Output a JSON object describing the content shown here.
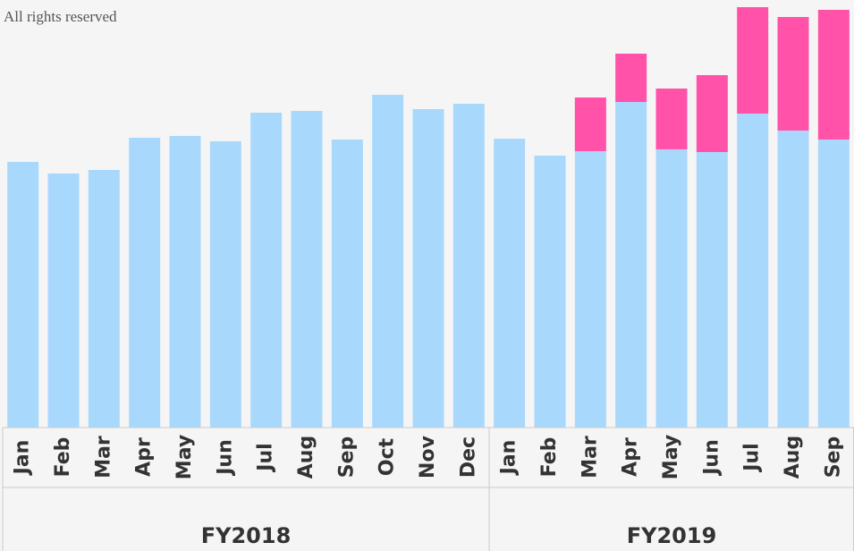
{
  "chart_data": {
    "type": "stacked_bar",
    "note_text": "All rights reserved",
    "groups": [
      {
        "name": "FY2018",
        "categories": [
          "Jan",
          "Feb",
          "Mar",
          "Apr",
          "May",
          "Jun",
          "Jul",
          "Aug",
          "Sep",
          "Oct",
          "Nov",
          "Dec"
        ]
      },
      {
        "name": "FY2019",
        "categories": [
          "Jan",
          "Feb",
          "Mar",
          "Apr",
          "May",
          "Jun",
          "Jul",
          "Aug",
          "Sep"
        ]
      }
    ],
    "series": [
      {
        "color": "#a9d8fd",
        "values": [
          297,
          284,
          288,
          324,
          326,
          320,
          352,
          354,
          322,
          372,
          356,
          362,
          323,
          304,
          309,
          364,
          311,
          308,
          351,
          332,
          322
        ]
      },
      {
        "color": "#ff52a8",
        "values": [
          null,
          null,
          null,
          null,
          null,
          null,
          null,
          null,
          null,
          null,
          null,
          null,
          null,
          null,
          60,
          54,
          68,
          86,
          119,
          127,
          145
        ]
      }
    ],
    "ylim": [
      0,
      478
    ]
  }
}
